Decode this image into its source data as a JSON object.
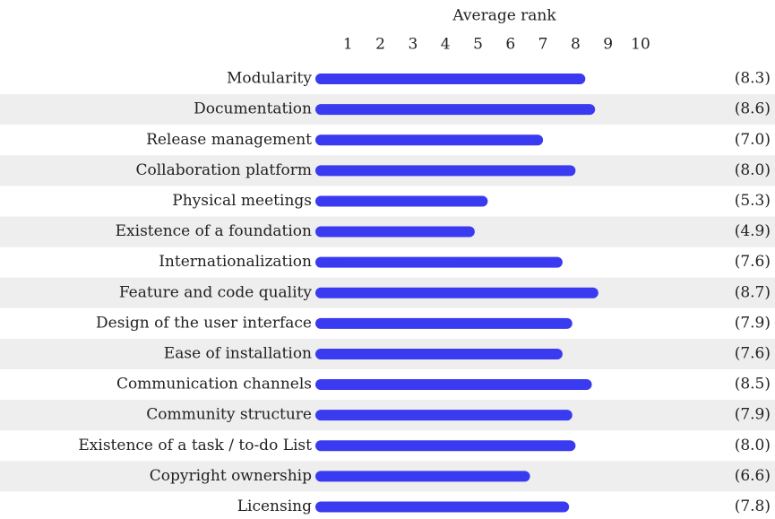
{
  "chart_data": {
    "type": "bar",
    "orientation": "horizontal",
    "xlabel": "Average rank",
    "categories": [
      "Modularity",
      "Documentation",
      "Release management",
      "Collaboration platform",
      "Physical meetings",
      "Existence of a foundation",
      "Internationalization",
      "Feature and code quality",
      "Design of the user interface",
      "Ease of installation",
      "Communication channels",
      "Community structure",
      "Existence of a task / to-do List",
      "Copyright ownership",
      "Licensing"
    ],
    "values": [
      8.3,
      8.6,
      7.0,
      8.0,
      5.3,
      4.9,
      7.6,
      8.7,
      7.9,
      7.6,
      8.5,
      7.9,
      8.0,
      6.6,
      7.8
    ],
    "value_labels": [
      "(8.3)",
      "(8.6)",
      "(7.0)",
      "(8.0)",
      "(5.3)",
      "(4.9)",
      "(7.6)",
      "(8.7)",
      "(7.9)",
      "(7.6)",
      "(8.5)",
      "(7.9)",
      "(8.0)",
      "(6.6)",
      "(7.8)"
    ],
    "color": "#3a3af0",
    "xlim": [
      0,
      10
    ],
    "xticks": [
      1,
      2,
      3,
      4,
      5,
      6,
      7,
      8,
      9,
      10
    ]
  }
}
